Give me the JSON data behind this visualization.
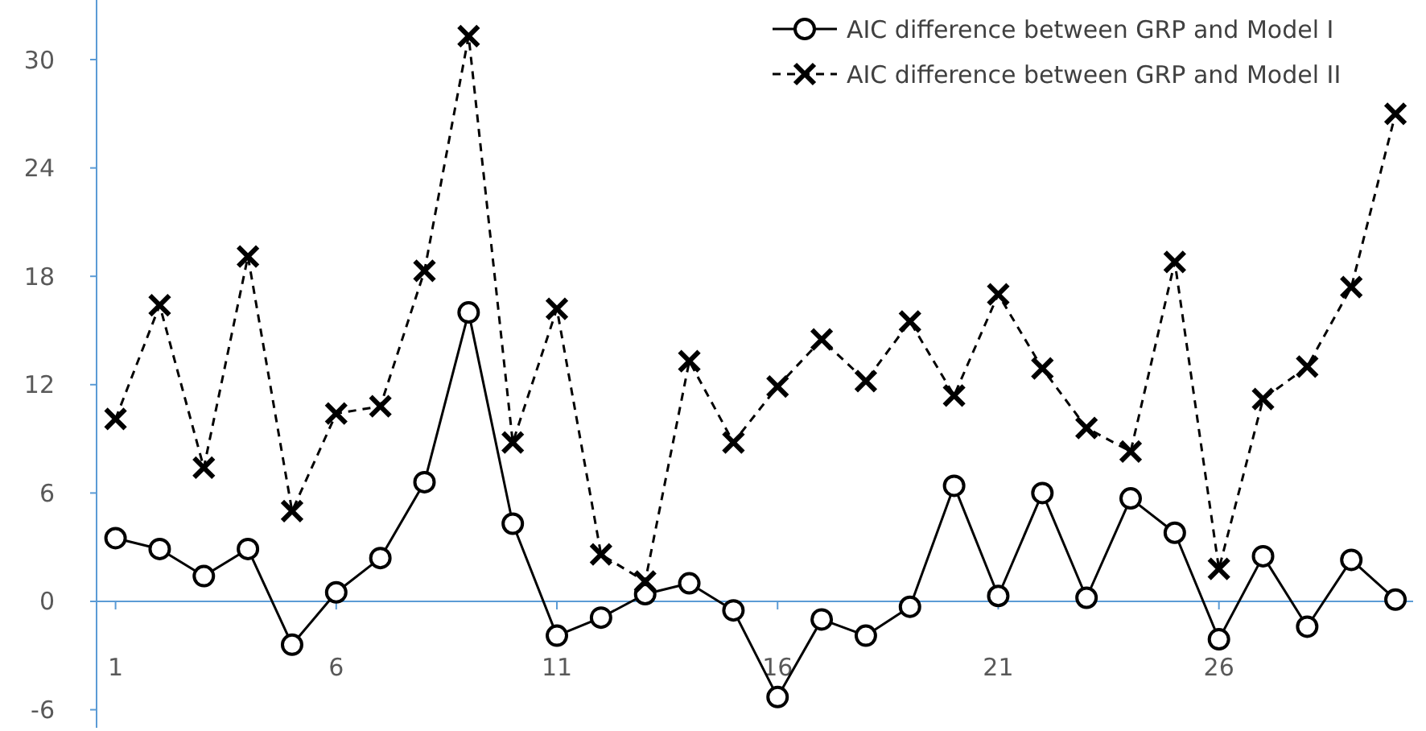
{
  "chart_data": {
    "type": "line",
    "x": [
      1,
      2,
      3,
      4,
      5,
      6,
      7,
      8,
      9,
      10,
      11,
      12,
      13,
      14,
      15,
      16,
      17,
      18,
      19,
      20,
      21,
      22,
      23,
      24,
      25,
      26,
      27,
      28,
      29,
      30
    ],
    "series": [
      {
        "name": "AIC difference between GRP and Model I",
        "color": "#000000",
        "marker": "circle",
        "line_style": "solid",
        "values": [
          3.5,
          2.9,
          1.4,
          2.9,
          -2.4,
          0.5,
          2.4,
          6.6,
          16.0,
          4.3,
          -1.9,
          -0.9,
          0.4,
          1.0,
          -0.5,
          -5.3,
          -1.0,
          -1.9,
          -0.3,
          6.4,
          0.3,
          6.0,
          0.2,
          5.7,
          3.8,
          -2.1,
          2.5,
          -1.4,
          2.3,
          0.1
        ]
      },
      {
        "name": "AIC difference between GRP and Model II",
        "color": "#000000",
        "marker": "cross",
        "line_style": "dashed",
        "values": [
          10.1,
          16.4,
          7.4,
          19.1,
          5.0,
          10.4,
          10.8,
          18.3,
          31.3,
          8.8,
          16.2,
          2.6,
          1.1,
          13.3,
          8.8,
          11.9,
          14.5,
          12.2,
          15.5,
          11.4,
          17.0,
          12.9,
          9.6,
          8.3,
          18.8,
          1.8,
          11.2,
          13.0,
          17.4,
          27.0
        ]
      }
    ],
    "xlim": [
      0.57,
      30.4
    ],
    "xticks": [
      1,
      6,
      11,
      16,
      21,
      26
    ],
    "ylim": [
      -7,
      33.3
    ],
    "yticks": [
      -6,
      0,
      6,
      12,
      18,
      24,
      30
    ],
    "grid": false,
    "legend": "top right"
  }
}
